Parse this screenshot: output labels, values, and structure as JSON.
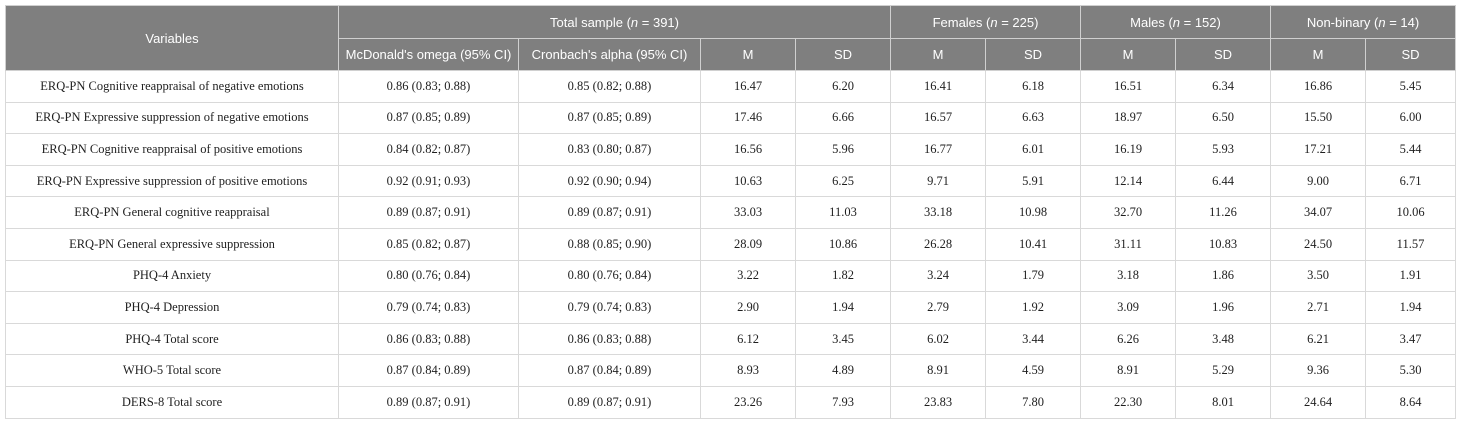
{
  "header": {
    "variables": "Variables",
    "groups": [
      {
        "label": "Total sample (",
        "n_label": "n",
        "n_value": " = 391)"
      },
      {
        "label": "Females (",
        "n_label": "n",
        "n_value": " = 225)"
      },
      {
        "label": "Males (",
        "n_label": "n",
        "n_value": " = 152)"
      },
      {
        "label": "Non-binary (",
        "n_label": "n",
        "n_value": " = 14)"
      }
    ],
    "subheaders": [
      "McDonald's omega (95% CI)",
      "Cronbach's alpha (95% CI)",
      "M",
      "SD",
      "M",
      "SD",
      "M",
      "SD",
      "M",
      "SD"
    ]
  },
  "rows": [
    {
      "name": "ERQ-PN Cognitive reappraisal of negative emotions",
      "cells": [
        "0.86 (0.83; 0.88)",
        "0.85 (0.82; 0.88)",
        "16.47",
        "6.20",
        "16.41",
        "6.18",
        "16.51",
        "6.34",
        "16.86",
        "5.45"
      ]
    },
    {
      "name": "ERQ-PN Expressive suppression of negative emotions",
      "cells": [
        "0.87 (0.85; 0.89)",
        "0.87 (0.85; 0.89)",
        "17.46",
        "6.66",
        "16.57",
        "6.63",
        "18.97",
        "6.50",
        "15.50",
        "6.00"
      ]
    },
    {
      "name": "ERQ-PN Cognitive reappraisal of positive emotions",
      "cells": [
        "0.84 (0.82; 0.87)",
        "0.83 (0.80; 0.87)",
        "16.56",
        "5.96",
        "16.77",
        "6.01",
        "16.19",
        "5.93",
        "17.21",
        "5.44"
      ]
    },
    {
      "name": "ERQ-PN Expressive suppression of positive emotions",
      "cells": [
        "0.92 (0.91; 0.93)",
        "0.92 (0.90; 0.94)",
        "10.63",
        "6.25",
        "9.71",
        "5.91",
        "12.14",
        "6.44",
        "9.00",
        "6.71"
      ]
    },
    {
      "name": "ERQ-PN General cognitive reappraisal",
      "cells": [
        "0.89 (0.87; 0.91)",
        "0.89 (0.87; 0.91)",
        "33.03",
        "11.03",
        "33.18",
        "10.98",
        "32.70",
        "11.26",
        "34.07",
        "10.06"
      ]
    },
    {
      "name": "ERQ-PN General expressive suppression",
      "cells": [
        "0.85 (0.82; 0.87)",
        "0.88 (0.85; 0.90)",
        "28.09",
        "10.86",
        "26.28",
        "10.41",
        "31.11",
        "10.83",
        "24.50",
        "11.57"
      ]
    },
    {
      "name": "PHQ-4 Anxiety",
      "cells": [
        "0.80 (0.76; 0.84)",
        "0.80 (0.76; 0.84)",
        "3.22",
        "1.82",
        "3.24",
        "1.79",
        "3.18",
        "1.86",
        "3.50",
        "1.91"
      ]
    },
    {
      "name": "PHQ-4 Depression",
      "cells": [
        "0.79 (0.74; 0.83)",
        "0.79 (0.74; 0.83)",
        "2.90",
        "1.94",
        "2.79",
        "1.92",
        "3.09",
        "1.96",
        "2.71",
        "1.94"
      ]
    },
    {
      "name": "PHQ-4 Total score",
      "cells": [
        "0.86 (0.83; 0.88)",
        "0.86 (0.83; 0.88)",
        "6.12",
        "3.45",
        "6.02",
        "3.44",
        "6.26",
        "3.48",
        "6.21",
        "3.47"
      ]
    },
    {
      "name": "WHO-5 Total score",
      "cells": [
        "0.87 (0.84; 0.89)",
        "0.87 (0.84; 0.89)",
        "8.93",
        "4.89",
        "8.91",
        "4.59",
        "8.91",
        "5.29",
        "9.36",
        "5.30"
      ]
    },
    {
      "name": "DERS-8 Total score",
      "cells": [
        "0.89 (0.87; 0.91)",
        "0.89 (0.87; 0.91)",
        "23.26",
        "7.93",
        "23.83",
        "7.80",
        "22.30",
        "8.01",
        "24.64",
        "8.64"
      ]
    }
  ]
}
